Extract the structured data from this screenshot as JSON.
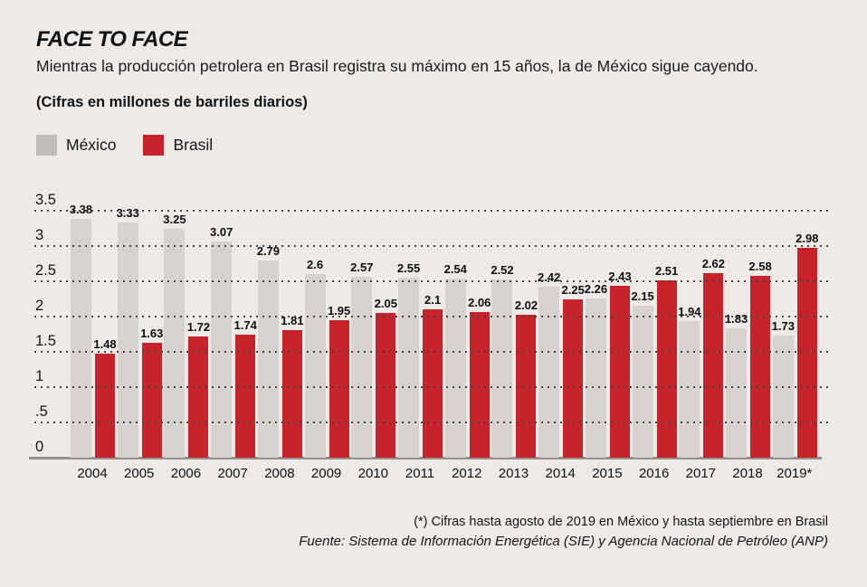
{
  "header": {
    "title": "FACE TO FACE",
    "subtitle": "Mientras la producción petrolera en Brasil registra su máximo en 15 años, la de México sigue cayendo.",
    "units_note": "(Cifras en millones de barriles diarios)"
  },
  "legend": [
    {
      "label": "México",
      "color": "#C3BDBA"
    },
    {
      "label": "Brasil",
      "color": "#C6232A"
    }
  ],
  "chart_data": {
    "type": "bar",
    "title": "FACE TO FACE",
    "subtitle": "Mientras la producción petrolera en Brasil registra su máximo en 15 años, la de México sigue cayendo.",
    "units": "Cifras en millones de barriles diarios",
    "categories": [
      "2004",
      "2005",
      "2006",
      "2007",
      "2008",
      "2009",
      "2010",
      "2011",
      "2012",
      "2013",
      "2014",
      "2015",
      "2016",
      "2017",
      "2018",
      "2019*"
    ],
    "series": [
      {
        "name": "México",
        "color": "#D7D2CF",
        "values": [
          3.38,
          3.33,
          3.25,
          3.07,
          2.79,
          2.6,
          2.57,
          2.55,
          2.54,
          2.52,
          2.42,
          2.26,
          2.15,
          1.94,
          1.83,
          1.73
        ]
      },
      {
        "name": "Brasil",
        "color": "#C6232A",
        "values": [
          1.48,
          1.63,
          1.72,
          1.74,
          1.81,
          1.95,
          2.05,
          2.1,
          2.06,
          2.02,
          2.25,
          2.43,
          2.51,
          2.62,
          2.58,
          2.98
        ]
      }
    ],
    "y_ticks": [
      "3.5",
      "3",
      "2.5",
      "2",
      "1.5",
      "1",
      ".5",
      "0"
    ],
    "ylim": [
      0,
      3.5
    ],
    "grid": "dotted horizontal lines",
    "legend_position": "top-left",
    "value_labels": true
  },
  "footnotes": {
    "asterisk_note": "(*) Cifras hasta agosto de 2019 en México y hasta septiembre en Brasil",
    "source": "Fuente: Sistema de Información Energética (SIE) y Agencia Nacional de Petróleo (ANP)"
  },
  "colors": {
    "background": "#EDEAE7",
    "mexico_bar": "#D7D2CF",
    "brasil_bar": "#C6232A",
    "grid_dot": "#45423F",
    "baseline": "#96918D",
    "text": "#161616"
  }
}
